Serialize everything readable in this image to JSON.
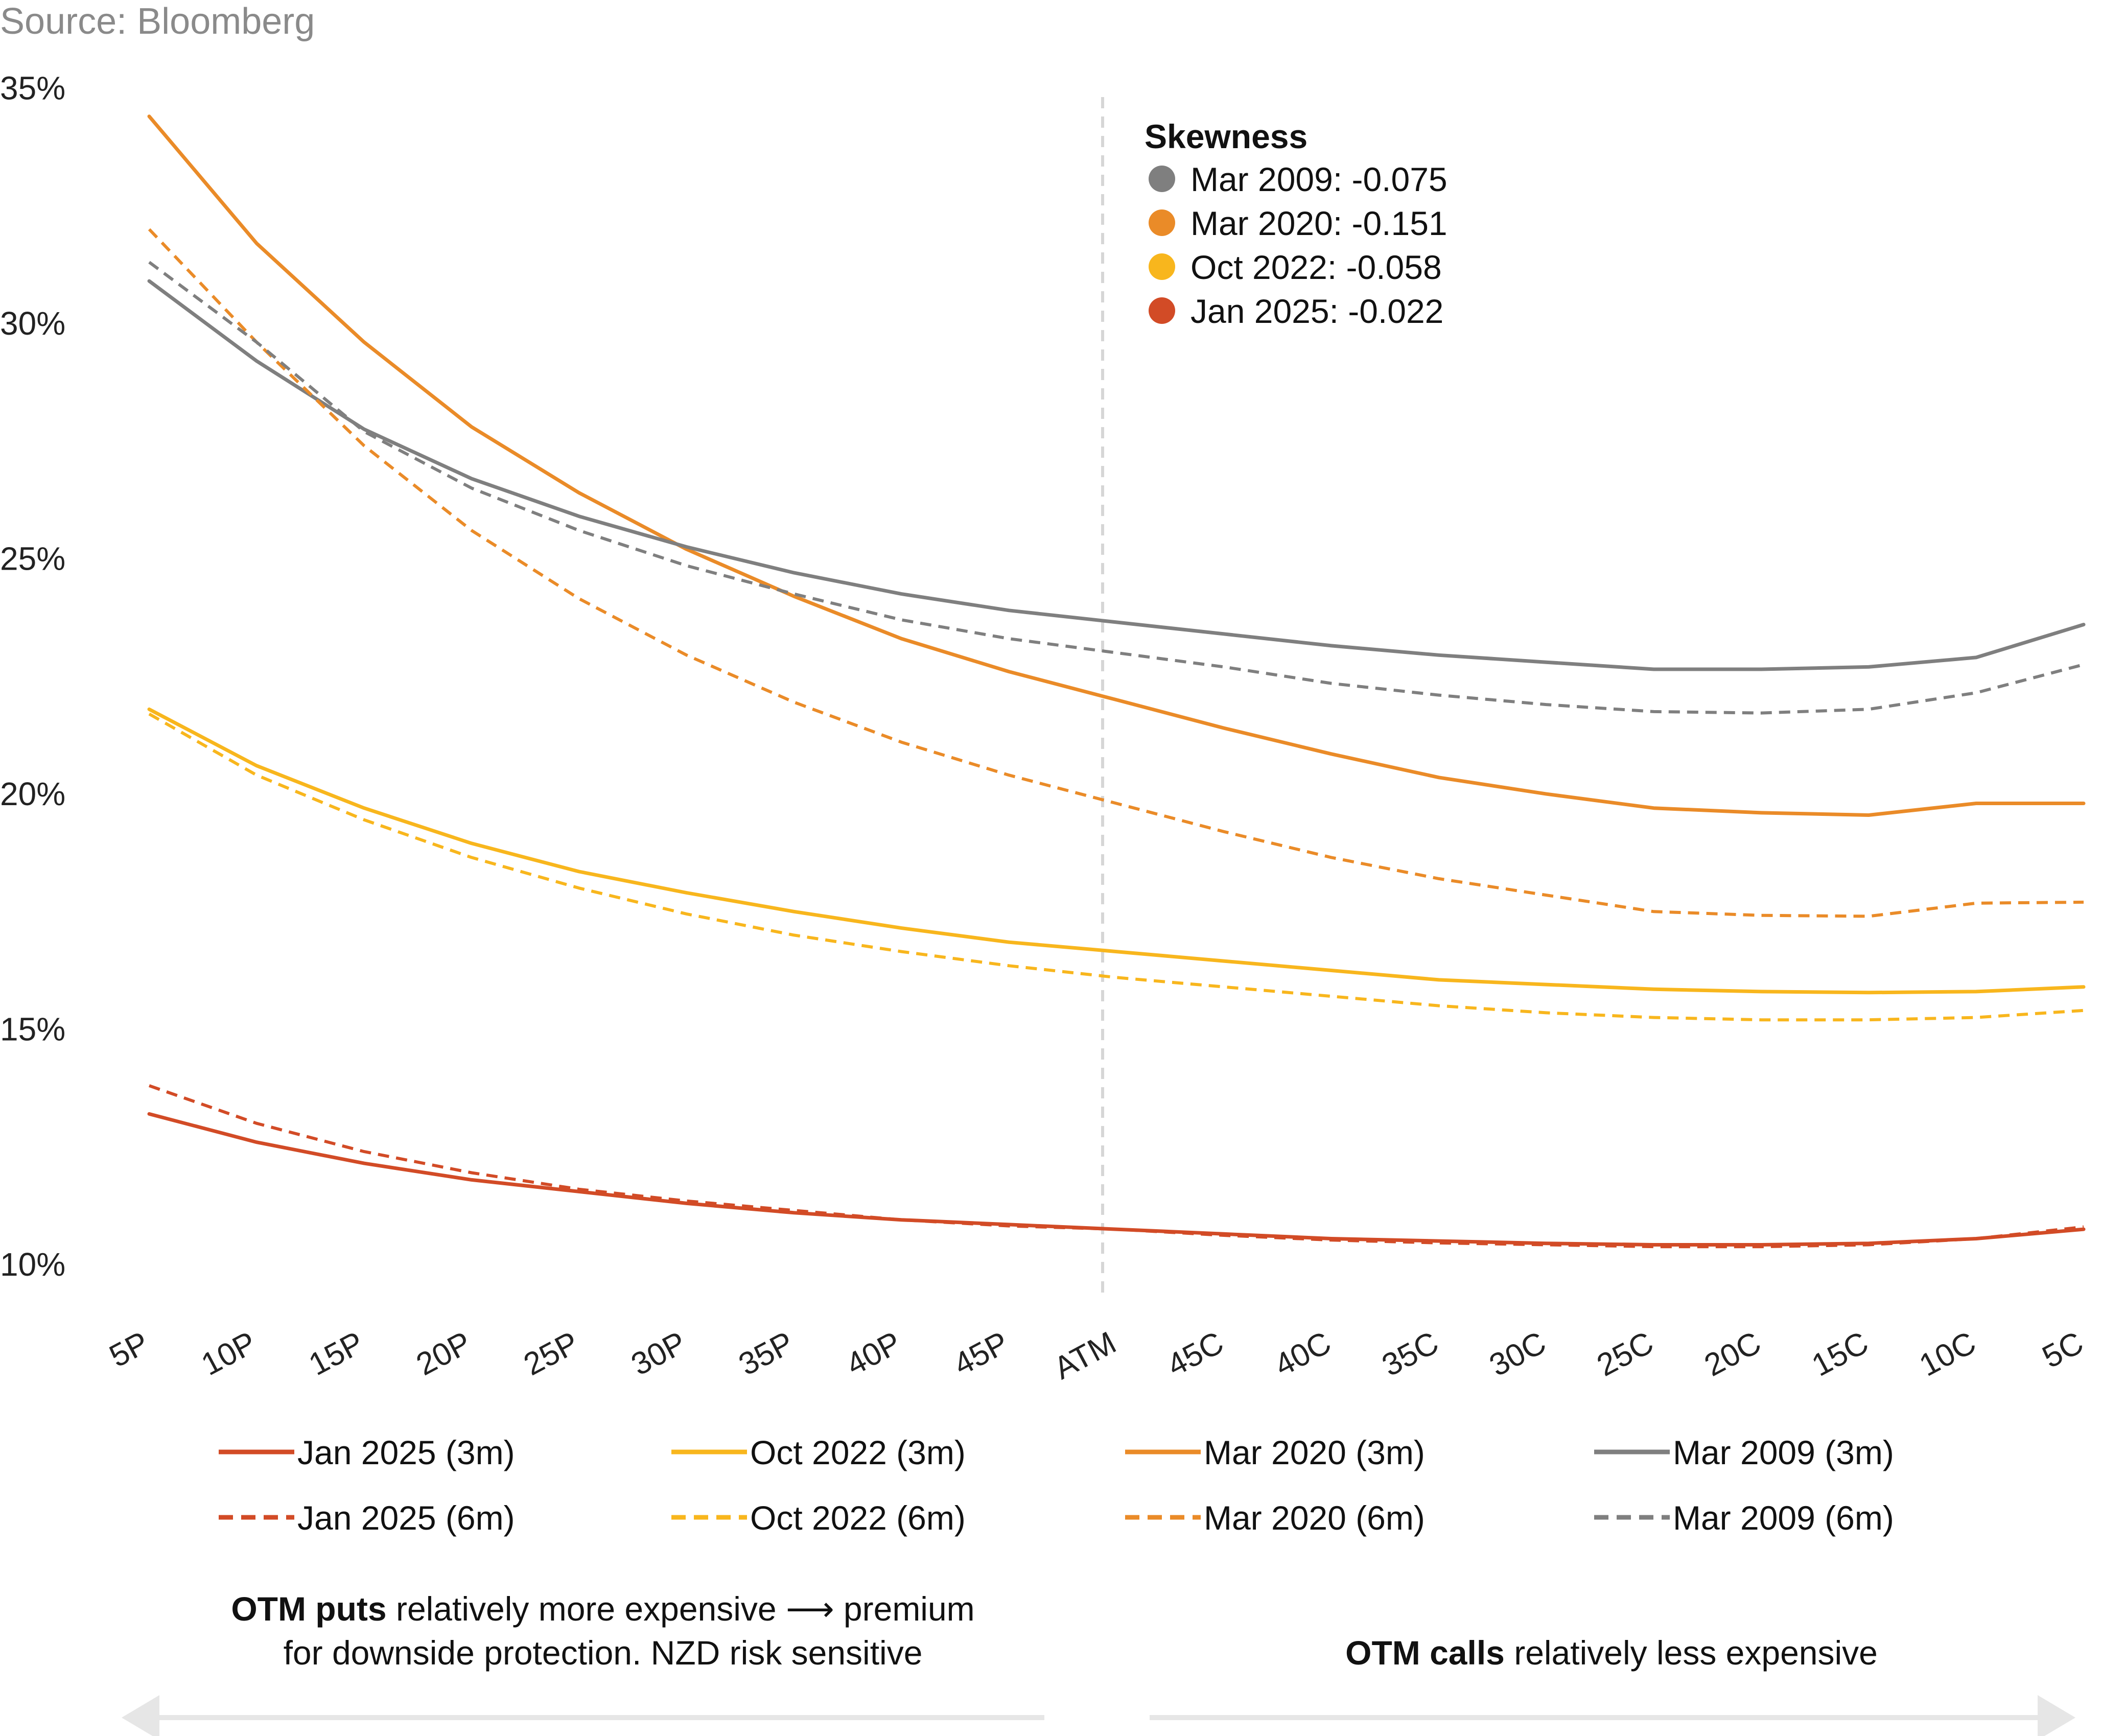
{
  "source": "Source: Bloomberg",
  "colors": {
    "mar2009": "#7f7f7f",
    "mar2020": "#ea8b28",
    "oct2022": "#f8b61d",
    "jan2025": "#d24b26",
    "axis_text": "#222222",
    "divider": "#d6d6d6",
    "arrow": "#e6e6e6"
  },
  "skewness": {
    "title": "Skewness",
    "items": [
      {
        "label": "Mar 2009: -0.075",
        "color": "#7f7f7f"
      },
      {
        "label": "Mar 2020: -0.151",
        "color": "#ea8b28"
      },
      {
        "label": "Oct 2022: -0.058",
        "color": "#f8b61d"
      },
      {
        "label": "Jan 2025: -0.022",
        "color": "#d24b26"
      }
    ]
  },
  "notes": {
    "left_bold": "OTM puts",
    "left_rest_line1": " relatively more expensive ",
    "left_arrow": "⟶",
    "left_after_arrow": " premium",
    "left_line2": "for downside protection. NZD risk sensitive",
    "right_bold": "OTM calls",
    "right_rest": " relatively less expensive"
  },
  "chart_data": {
    "type": "line",
    "title": "",
    "xlabel": "",
    "ylabel": "",
    "categories": [
      "5P",
      "10P",
      "15P",
      "20P",
      "25P",
      "30P",
      "35P",
      "40P",
      "45P",
      "ATM",
      "45C",
      "40C",
      "35C",
      "30C",
      "25C",
      "20C",
      "15C",
      "10C",
      "5C"
    ],
    "y_ticks": [
      10,
      15,
      20,
      25,
      30,
      35
    ],
    "y_tick_labels": [
      "10%",
      "15%",
      "20%",
      "25%",
      "30%",
      "35%"
    ],
    "ylim": [
      9.6,
      35.2
    ],
    "grid": false,
    "divider_at": "ATM",
    "series": [
      {
        "name": "Jan 2025 (3m)",
        "color": "#d24b26",
        "dashed": false,
        "values": [
          13.2,
          12.6,
          12.15,
          11.8,
          11.55,
          11.3,
          11.1,
          10.95,
          10.85,
          10.75,
          10.65,
          10.55,
          10.5,
          10.45,
          10.42,
          10.42,
          10.45,
          10.55,
          10.75
        ]
      },
      {
        "name": "Oct 2022 (3m)",
        "color": "#f8b61d",
        "dashed": false,
        "values": [
          21.8,
          20.6,
          19.7,
          18.95,
          18.35,
          17.9,
          17.5,
          17.15,
          16.85,
          16.65,
          16.45,
          16.25,
          16.05,
          15.95,
          15.85,
          15.8,
          15.78,
          15.8,
          15.9
        ]
      },
      {
        "name": "Mar 2020 (3m)",
        "color": "#ea8b28",
        "dashed": false,
        "values": [
          34.4,
          31.7,
          29.6,
          27.8,
          26.4,
          25.2,
          24.2,
          23.3,
          22.6,
          22.0,
          21.4,
          20.85,
          20.35,
          20.0,
          19.7,
          19.6,
          19.55,
          19.8,
          19.8
        ]
      },
      {
        "name": "Mar 2009 (3m)",
        "color": "#7f7f7f",
        "dashed": false,
        "values": [
          30.9,
          29.2,
          27.75,
          26.7,
          25.9,
          25.25,
          24.7,
          24.25,
          23.9,
          23.65,
          23.4,
          23.15,
          22.95,
          22.8,
          22.65,
          22.65,
          22.7,
          22.9,
          23.6
        ]
      },
      {
        "name": "Jan 2025 (6m)",
        "color": "#d24b26",
        "dashed": true,
        "values": [
          13.8,
          13.0,
          12.4,
          11.95,
          11.6,
          11.35,
          11.15,
          10.95,
          10.82,
          10.75,
          10.62,
          10.52,
          10.46,
          10.42,
          10.38,
          10.38,
          10.42,
          10.55,
          10.8
        ]
      },
      {
        "name": "Oct 2022 (6m)",
        "color": "#f8b61d",
        "dashed": true,
        "values": [
          21.7,
          20.4,
          19.45,
          18.65,
          18.0,
          17.45,
          17.0,
          16.65,
          16.35,
          16.1,
          15.9,
          15.7,
          15.5,
          15.35,
          15.25,
          15.2,
          15.2,
          15.25,
          15.4
        ]
      },
      {
        "name": "Mar 2020 (6m)",
        "color": "#ea8b28",
        "dashed": true,
        "values": [
          32.0,
          29.6,
          27.4,
          25.6,
          24.15,
          22.95,
          21.95,
          21.1,
          20.4,
          19.8,
          19.2,
          18.65,
          18.2,
          17.85,
          17.5,
          17.42,
          17.4,
          17.68,
          17.7
        ]
      },
      {
        "name": "Mar 2009 (6m)",
        "color": "#7f7f7f",
        "dashed": true,
        "values": [
          31.3,
          29.6,
          27.7,
          26.5,
          25.6,
          24.85,
          24.25,
          23.7,
          23.3,
          23.0,
          22.7,
          22.35,
          22.1,
          21.9,
          21.75,
          21.72,
          21.8,
          22.15,
          22.75
        ]
      }
    ],
    "legend": [
      {
        "label": "Jan 2025 (3m)",
        "color": "#d24b26",
        "dashed": false
      },
      {
        "label": "Oct 2022 (3m)",
        "color": "#f8b61d",
        "dashed": false
      },
      {
        "label": "Mar 2020 (3m)",
        "color": "#ea8b28",
        "dashed": false
      },
      {
        "label": "Mar 2009 (3m)",
        "color": "#7f7f7f",
        "dashed": false
      },
      {
        "label": "Jan 2025 (6m)",
        "color": "#d24b26",
        "dashed": true
      },
      {
        "label": "Oct 2022 (6m)",
        "color": "#f8b61d",
        "dashed": true
      },
      {
        "label": "Mar 2020 (6m)",
        "color": "#ea8b28",
        "dashed": true
      },
      {
        "label": "Mar 2009 (6m)",
        "color": "#7f7f7f",
        "dashed": true
      }
    ]
  }
}
